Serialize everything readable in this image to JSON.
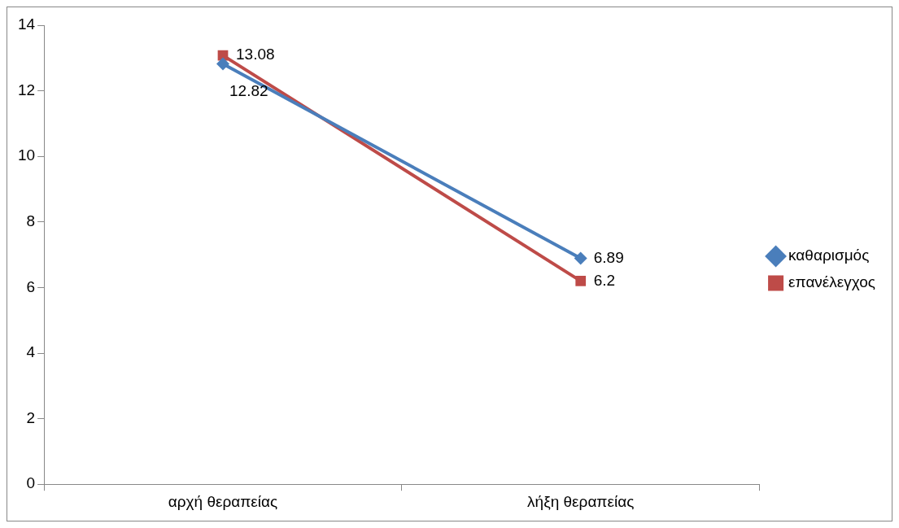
{
  "chart_data": {
    "type": "line",
    "categories": [
      "αρχή θεραπείας",
      "λήξη θεραπείας"
    ],
    "series": [
      {
        "name": "καθαρισμός",
        "color": "#4a7ebb",
        "values": [
          12.82,
          6.89
        ],
        "marker": "diamond"
      },
      {
        "name": "επανέλεγχος",
        "color": "#be4b48",
        "values": [
          13.08,
          6.2
        ],
        "marker": "square"
      }
    ],
    "ylim": [
      0,
      14
    ],
    "yticks": [
      0,
      2,
      4,
      6,
      8,
      10,
      12,
      14
    ],
    "grid": false,
    "legend": "right",
    "data_labels": true,
    "line_style": "solid"
  }
}
